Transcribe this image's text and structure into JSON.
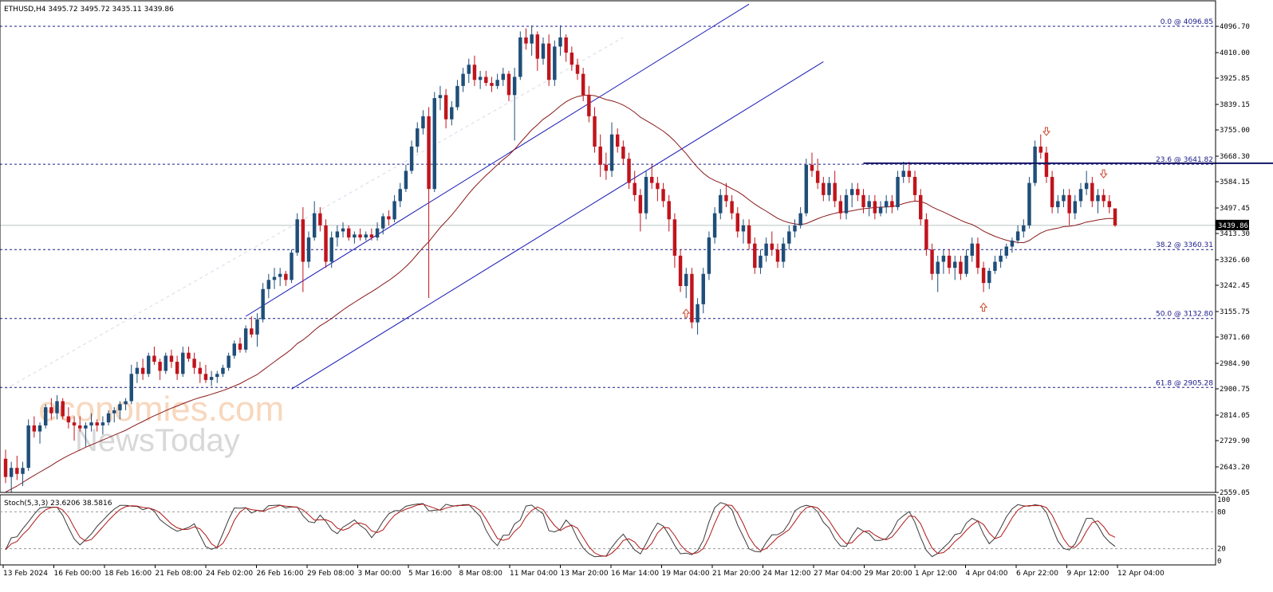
{
  "chart_data": {
    "type": "candlestick",
    "symbol": "ETHUSD",
    "timeframe": "H4",
    "header": {
      "title": "ETHUSD,H4  3495.72 3495.72 3435.11 3439.86",
      "open": 3495.72,
      "high": 3495.72,
      "low": 3435.11,
      "close": 3439.86
    },
    "current_price_label": "3439.86",
    "ylim": [
      2559.05,
      4096.85
    ],
    "y_ticks": [
      "4096.70",
      "4010.00",
      "3925.85",
      "3839.15",
      "3755.00",
      "3668.30",
      "3584.15",
      "3497.45",
      "3413.30",
      "3326.60",
      "3242.45",
      "3155.75",
      "3071.60",
      "2984.90",
      "2900.75",
      "2814.05",
      "2729.90",
      "2643.20",
      "2559.05"
    ],
    "x_ticks": [
      "13 Feb 2024",
      "16 Feb 00:00",
      "18 Feb 16:00",
      "21 Feb 08:00",
      "24 Feb 02:00",
      "26 Feb 16:00",
      "29 Feb 08:00",
      "3 Mar 00:00",
      "5 Mar 16:00",
      "8 Mar 08:00",
      "11 Mar 04:00",
      "13 Mar 20:00",
      "16 Mar 14:00",
      "19 Mar 04:00",
      "21 Mar 20:00",
      "24 Mar 12:00",
      "27 Mar 04:00",
      "29 Mar 20:00",
      "1 Apr 12:00",
      "4 Apr 04:00",
      "6 Apr 22:00",
      "9 Apr 12:00",
      "12 Apr 04:00"
    ],
    "fib_levels": [
      {
        "label": "0.0 @ 4096.85",
        "value": 4096.85
      },
      {
        "label": "23.6 @ 3641.82",
        "value": 3641.82
      },
      {
        "label": "38.2 @ 3360.31",
        "value": 3360.31
      },
      {
        "label": "50.0 @ 3132.80",
        "value": 3132.8
      },
      {
        "label": "61.8 @ 2905.28",
        "value": 2905.28
      }
    ],
    "resistance_line": {
      "value": 3645,
      "from_index": 150,
      "to_index": 270
    },
    "channel": {
      "upper": [
        [
          42,
          3140
        ],
        [
          130,
          4170
        ]
      ],
      "lower": [
        [
          50,
          2900
        ],
        [
          143,
          3980
        ]
      ]
    },
    "moving_average_label": "",
    "candles": [
      [
        2670,
        2700,
        2590,
        2610
      ],
      [
        2610,
        2660,
        2560,
        2640
      ],
      [
        2640,
        2680,
        2600,
        2620
      ],
      [
        2620,
        2660,
        2580,
        2640
      ],
      [
        2640,
        2800,
        2630,
        2780
      ],
      [
        2780,
        2810,
        2740,
        2760
      ],
      [
        2760,
        2790,
        2720,
        2780
      ],
      [
        2780,
        2850,
        2770,
        2840
      ],
      [
        2840,
        2870,
        2800,
        2820
      ],
      [
        2820,
        2880,
        2800,
        2860
      ],
      [
        2860,
        2870,
        2800,
        2810
      ],
      [
        2810,
        2840,
        2770,
        2790
      ],
      [
        2790,
        2810,
        2730,
        2780
      ],
      [
        2780,
        2810,
        2760,
        2770
      ],
      [
        2770,
        2790,
        2710,
        2780
      ],
      [
        2780,
        2820,
        2760,
        2790
      ],
      [
        2790,
        2800,
        2760,
        2780
      ],
      [
        2780,
        2810,
        2750,
        2790
      ],
      [
        2790,
        2830,
        2780,
        2820
      ],
      [
        2820,
        2840,
        2790,
        2830
      ],
      [
        2830,
        2860,
        2800,
        2850
      ],
      [
        2850,
        2870,
        2830,
        2860
      ],
      [
        2860,
        2980,
        2850,
        2950
      ],
      [
        2950,
        2990,
        2920,
        2970
      ],
      [
        2970,
        3000,
        2930,
        2950
      ],
      [
        2950,
        3020,
        2940,
        3010
      ],
      [
        3010,
        3040,
        2980,
        2990
      ],
      [
        2990,
        3000,
        2930,
        2960
      ],
      [
        2960,
        3020,
        2950,
        3010
      ],
      [
        3010,
        3030,
        2970,
        2990
      ],
      [
        2990,
        3010,
        2930,
        2950
      ],
      [
        2950,
        3040,
        2940,
        3020
      ],
      [
        3020,
        3040,
        2990,
        3000
      ],
      [
        3000,
        3020,
        2950,
        2970
      ],
      [
        2970,
        2990,
        2920,
        2950
      ],
      [
        2950,
        2980,
        2920,
        2930
      ],
      [
        2930,
        2960,
        2910,
        2940
      ],
      [
        2940,
        2960,
        2920,
        2950
      ],
      [
        2950,
        2980,
        2940,
        2970
      ],
      [
        2970,
        3020,
        2960,
        3010
      ],
      [
        3010,
        3060,
        3000,
        3050
      ],
      [
        3050,
        3070,
        3020,
        3030
      ],
      [
        3030,
        3110,
        3020,
        3100
      ],
      [
        3100,
        3140,
        3070,
        3080
      ],
      [
        3080,
        3150,
        3040,
        3130
      ],
      [
        3130,
        3250,
        3120,
        3230
      ],
      [
        3230,
        3280,
        3200,
        3260
      ],
      [
        3260,
        3300,
        3230,
        3270
      ],
      [
        3270,
        3300,
        3240,
        3280
      ],
      [
        3280,
        3290,
        3240,
        3260
      ],
      [
        3260,
        3360,
        3250,
        3350
      ],
      [
        3350,
        3480,
        3340,
        3460
      ],
      [
        3460,
        3500,
        3220,
        3320
      ],
      [
        3320,
        3420,
        3300,
        3400
      ],
      [
        3400,
        3520,
        3390,
        3480
      ],
      [
        3480,
        3500,
        3420,
        3440
      ],
      [
        3440,
        3460,
        3300,
        3320
      ],
      [
        3320,
        3420,
        3300,
        3400
      ],
      [
        3400,
        3440,
        3370,
        3420
      ],
      [
        3420,
        3450,
        3400,
        3430
      ],
      [
        3430,
        3440,
        3390,
        3400
      ],
      [
        3400,
        3420,
        3380,
        3410
      ],
      [
        3410,
        3430,
        3390,
        3400
      ],
      [
        3400,
        3420,
        3390,
        3410
      ],
      [
        3410,
        3430,
        3390,
        3400
      ],
      [
        3400,
        3450,
        3390,
        3430
      ],
      [
        3430,
        3480,
        3410,
        3470
      ],
      [
        3470,
        3490,
        3440,
        3460
      ],
      [
        3460,
        3540,
        3450,
        3520
      ],
      [
        3520,
        3580,
        3500,
        3560
      ],
      [
        3560,
        3640,
        3550,
        3620
      ],
      [
        3620,
        3720,
        3610,
        3700
      ],
      [
        3700,
        3780,
        3680,
        3760
      ],
      [
        3760,
        3820,
        3740,
        3800
      ],
      [
        3800,
        3830,
        3200,
        3560
      ],
      [
        3560,
        3880,
        3550,
        3860
      ],
      [
        3860,
        3900,
        3820,
        3870
      ],
      [
        3870,
        3890,
        3760,
        3790
      ],
      [
        3790,
        3850,
        3770,
        3830
      ],
      [
        3830,
        3920,
        3820,
        3900
      ],
      [
        3900,
        3960,
        3880,
        3940
      ],
      [
        3940,
        3990,
        3910,
        3970
      ],
      [
        3970,
        4000,
        3900,
        3920
      ],
      [
        3920,
        3950,
        3890,
        3930
      ],
      [
        3930,
        3950,
        3900,
        3910
      ],
      [
        3910,
        3930,
        3880,
        3900
      ],
      [
        3900,
        3940,
        3890,
        3920
      ],
      [
        3920,
        3960,
        3900,
        3940
      ],
      [
        3940,
        3950,
        3850,
        3870
      ],
      [
        3870,
        3960,
        3720,
        3930
      ],
      [
        3930,
        4080,
        3920,
        4060
      ],
      [
        4060,
        4090,
        4020,
        4040
      ],
      [
        4040,
        4100,
        4000,
        4070
      ],
      [
        4070,
        4080,
        3950,
        3990
      ],
      [
        3990,
        4060,
        3970,
        4040
      ],
      [
        4040,
        4070,
        3900,
        3920
      ],
      [
        3920,
        4050,
        3900,
        4030
      ],
      [
        4030,
        4100,
        4000,
        4060
      ],
      [
        4060,
        4070,
        3980,
        4010
      ],
      [
        4010,
        4030,
        3950,
        3970
      ],
      [
        3970,
        3990,
        3920,
        3940
      ],
      [
        3940,
        3960,
        3850,
        3870
      ],
      [
        3870,
        3900,
        3780,
        3800
      ],
      [
        3800,
        3830,
        3680,
        3700
      ],
      [
        3700,
        3740,
        3600,
        3640
      ],
      [
        3640,
        3680,
        3590,
        3620
      ],
      [
        3620,
        3780,
        3600,
        3740
      ],
      [
        3740,
        3760,
        3680,
        3700
      ],
      [
        3700,
        3720,
        3640,
        3660
      ],
      [
        3660,
        3680,
        3560,
        3580
      ],
      [
        3580,
        3620,
        3520,
        3540
      ],
      [
        3540,
        3560,
        3420,
        3480
      ],
      [
        3480,
        3620,
        3460,
        3600
      ],
      [
        3600,
        3640,
        3560,
        3580
      ],
      [
        3580,
        3600,
        3520,
        3560
      ],
      [
        3560,
        3580,
        3500,
        3520
      ],
      [
        3520,
        3540,
        3420,
        3460
      ],
      [
        3460,
        3480,
        3300,
        3340
      ],
      [
        3340,
        3360,
        3220,
        3240
      ],
      [
        3240,
        3300,
        3200,
        3280
      ],
      [
        3280,
        3300,
        3100,
        3120
      ],
      [
        3120,
        3200,
        3080,
        3180
      ],
      [
        3180,
        3300,
        3150,
        3280
      ],
      [
        3280,
        3420,
        3260,
        3400
      ],
      [
        3400,
        3500,
        3380,
        3480
      ],
      [
        3480,
        3560,
        3460,
        3540
      ],
      [
        3540,
        3580,
        3500,
        3520
      ],
      [
        3520,
        3540,
        3460,
        3480
      ],
      [
        3480,
        3500,
        3400,
        3420
      ],
      [
        3420,
        3460,
        3380,
        3440
      ],
      [
        3440,
        3460,
        3360,
        3380
      ],
      [
        3380,
        3400,
        3280,
        3300
      ],
      [
        3300,
        3360,
        3280,
        3340
      ],
      [
        3340,
        3400,
        3320,
        3380
      ],
      [
        3380,
        3420,
        3340,
        3360
      ],
      [
        3360,
        3380,
        3300,
        3320
      ],
      [
        3320,
        3400,
        3300,
        3380
      ],
      [
        3380,
        3440,
        3360,
        3420
      ],
      [
        3420,
        3460,
        3400,
        3440
      ],
      [
        3440,
        3500,
        3430,
        3480
      ],
      [
        3480,
        3660,
        3470,
        3640
      ],
      [
        3640,
        3680,
        3600,
        3620
      ],
      [
        3620,
        3660,
        3560,
        3580
      ],
      [
        3580,
        3600,
        3520,
        3540
      ],
      [
        3540,
        3600,
        3520,
        3580
      ],
      [
        3580,
        3620,
        3500,
        3520
      ],
      [
        3520,
        3540,
        3460,
        3480
      ],
      [
        3480,
        3560,
        3460,
        3540
      ],
      [
        3540,
        3580,
        3500,
        3560
      ],
      [
        3560,
        3580,
        3520,
        3540
      ],
      [
        3540,
        3560,
        3480,
        3500
      ],
      [
        3500,
        3540,
        3470,
        3520
      ],
      [
        3520,
        3540,
        3460,
        3480
      ],
      [
        3480,
        3520,
        3470,
        3500
      ],
      [
        3500,
        3540,
        3480,
        3520
      ],
      [
        3520,
        3540,
        3480,
        3500
      ],
      [
        3500,
        3620,
        3490,
        3600
      ],
      [
        3600,
        3650,
        3580,
        3620
      ],
      [
        3620,
        3650,
        3580,
        3600
      ],
      [
        3600,
        3620,
        3520,
        3540
      ],
      [
        3540,
        3560,
        3440,
        3460
      ],
      [
        3460,
        3480,
        3340,
        3360
      ],
      [
        3360,
        3380,
        3260,
        3280
      ],
      [
        3280,
        3340,
        3220,
        3320
      ],
      [
        3320,
        3360,
        3280,
        3340
      ],
      [
        3340,
        3360,
        3280,
        3300
      ],
      [
        3300,
        3340,
        3260,
        3320
      ],
      [
        3320,
        3340,
        3260,
        3280
      ],
      [
        3280,
        3360,
        3270,
        3340
      ],
      [
        3340,
        3400,
        3320,
        3380
      ],
      [
        3380,
        3400,
        3280,
        3300
      ],
      [
        3300,
        3320,
        3220,
        3250
      ],
      [
        3250,
        3300,
        3230,
        3290
      ],
      [
        3290,
        3340,
        3280,
        3320
      ],
      [
        3320,
        3360,
        3300,
        3340
      ],
      [
        3340,
        3380,
        3330,
        3370
      ],
      [
        3370,
        3400,
        3350,
        3390
      ],
      [
        3390,
        3440,
        3380,
        3420
      ],
      [
        3420,
        3460,
        3400,
        3440
      ],
      [
        3440,
        3600,
        3430,
        3580
      ],
      [
        3580,
        3720,
        3570,
        3700
      ],
      [
        3700,
        3740,
        3660,
        3680
      ],
      [
        3680,
        3700,
        3580,
        3600
      ],
      [
        3600,
        3620,
        3480,
        3500
      ],
      [
        3500,
        3540,
        3480,
        3520
      ],
      [
        3520,
        3560,
        3500,
        3540
      ],
      [
        3540,
        3560,
        3440,
        3480
      ],
      [
        3480,
        3540,
        3460,
        3520
      ],
      [
        3520,
        3580,
        3500,
        3560
      ],
      [
        3560,
        3620,
        3540,
        3580
      ],
      [
        3580,
        3600,
        3500,
        3520
      ],
      [
        3520,
        3560,
        3480,
        3540
      ],
      [
        3540,
        3560,
        3500,
        3520
      ],
      [
        3520,
        3540,
        3480,
        3500
      ],
      [
        3496,
        3496,
        3435,
        3440
      ]
    ],
    "ma": [
      2560,
      2570,
      2580,
      2592,
      2604,
      2615,
      2626,
      2637,
      2648,
      2660,
      2671,
      2681,
      2690,
      2699,
      2708,
      2716,
      2724,
      2732,
      2740,
      2748,
      2756,
      2764,
      2774,
      2784,
      2793,
      2803,
      2812,
      2820,
      2829,
      2837,
      2844,
      2852,
      2859,
      2866,
      2872,
      2877,
      2883,
      2889,
      2895,
      2902,
      2910,
      2918,
      2928,
      2938,
      2948,
      2962,
      2976,
      2990,
      3004,
      3017,
      3032,
      3050,
      3062,
      3077,
      3094,
      3109,
      3120,
      3133,
      3147,
      3161,
      3174,
      3186,
      3198,
      3210,
      3221,
      3233,
      3246,
      3258,
      3272,
      3287,
      3304,
      3323,
      3345,
      3367,
      3386,
      3410,
      3433,
      3453,
      3474,
      3497,
      3521,
      3545,
      3566,
      3586,
      3605,
      3622,
      3640,
      3657,
      3672,
      3691,
      3713,
      3734,
      3755,
      3772,
      3790,
      3803,
      3818,
      3834,
      3848,
      3858,
      3865,
      3869,
      3870,
      3868,
      3862,
      3855,
      3851,
      3845,
      3837,
      3826,
      3813,
      3797,
      3786,
      3775,
      3763,
      3751,
      3736,
      3718,
      3697,
      3677,
      3653,
      3631,
      3612,
      3598,
      3588,
      3580,
      3571,
      3561,
      3551,
      3539,
      3524,
      3510,
      3498,
      3487,
      3475,
      3463,
      3455,
      3449,
      3445,
      3443,
      3446,
      3454,
      3462,
      3469,
      3475,
      3480,
      3484,
      3485,
      3488,
      3492,
      3495,
      3497,
      3499,
      3500,
      3501,
      3502,
      3506,
      3512,
      3517,
      3520,
      3519,
      3512,
      3501,
      3492,
      3484,
      3475,
      3466,
      3457,
      3449,
      3443,
      3433,
      3421,
      3412,
      3404,
      3397,
      3391,
      3387,
      3384,
      3383,
      3390,
      3403,
      3415,
      3423,
      3427,
      3431,
      3436,
      3437,
      3440,
      3445,
      3451,
      3454,
      3458,
      3461,
      3463,
      3462
    ],
    "stochastic": {
      "label": "Stoch(5,3,3) 23.6206 38.5816",
      "k": 23.6206,
      "d": 38.5816,
      "levels": [
        80,
        20
      ],
      "axis_labels": [
        "100",
        "80",
        "20",
        "0"
      ]
    },
    "annotations": [
      {
        "type": "arrow-up",
        "index": 119
      },
      {
        "type": "arrow-up",
        "index": 171
      },
      {
        "type": "arrow-down",
        "index": 182
      },
      {
        "type": "arrow-down",
        "index": 192
      }
    ],
    "watermark": {
      "line1": "economies.com",
      "line2": "NewsToday"
    }
  },
  "colors": {
    "bull": "#1f4e79",
    "bear": "#c0141c",
    "ma": "#8b1a1a",
    "fib": "#1a1a8c",
    "channel": "#1c1cb8",
    "resistance": "#141466",
    "stoch_main": "#3a3a3a",
    "stoch_signal": "#b01818",
    "arrow": "#cc4b2e"
  }
}
